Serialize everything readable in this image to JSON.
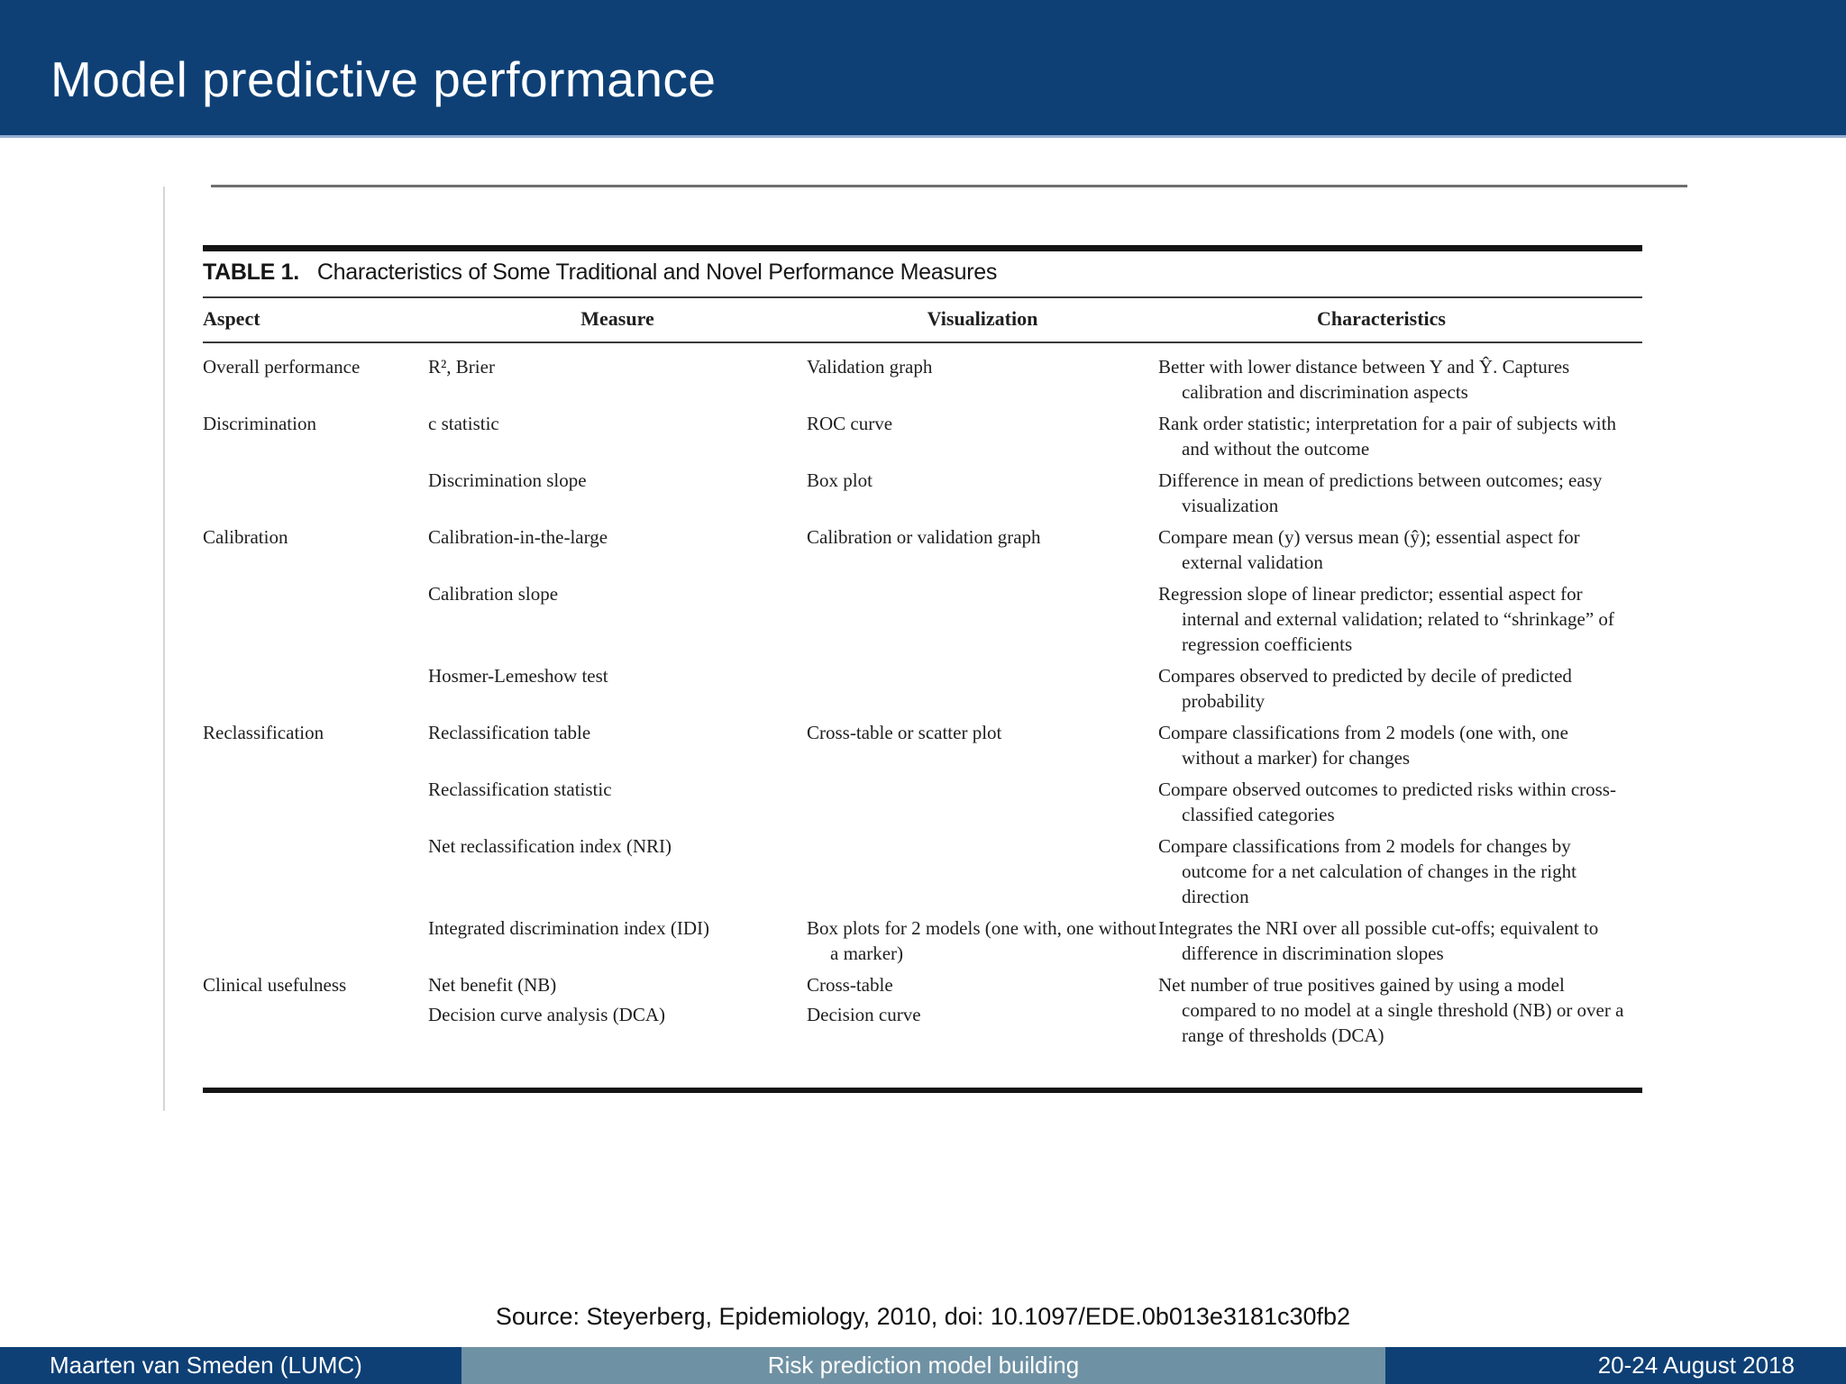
{
  "slide": {
    "title": "Model predictive performance",
    "source_line": "Source: Steyerberg, Epidemiology, 2010, doi: 10.1097/EDE.0b013e3181c30fb2",
    "footer": {
      "author": "Maarten van Smeden (LUMC)",
      "middle": "Risk prediction model building",
      "date": "20-24 August 2018"
    },
    "colors": {
      "header_blue": "#0e4076",
      "header_underline": "#97aed2",
      "footer_middle_steel": "#6f91a4",
      "table_text": "#1f1f1f"
    }
  },
  "table": {
    "caption_label": "TABLE 1.",
    "caption_text": "Characteristics of Some Traditional and Novel Performance Measures",
    "columns": [
      "Aspect",
      "Measure",
      "Visualization",
      "Characteristics"
    ],
    "rows": [
      {
        "aspect": "Overall performance",
        "measure": "R², Brier",
        "visualization": "Validation graph",
        "characteristics": "Better with lower distance between Y and Ŷ. Captures calibration and discrimination aspects"
      },
      {
        "aspect": "Discrimination",
        "measure": "c statistic",
        "visualization": "ROC curve",
        "characteristics": "Rank order statistic; interpretation for a pair of subjects with and without the outcome"
      },
      {
        "aspect": "",
        "measure": "Discrimination slope",
        "visualization": "Box plot",
        "characteristics": "Difference in mean of predictions between outcomes; easy visualization"
      },
      {
        "aspect": "Calibration",
        "measure": "Calibration-in-the-large",
        "visualization": "Calibration or validation graph",
        "characteristics": "Compare mean (y) versus mean (ŷ); essential aspect for external validation"
      },
      {
        "aspect": "",
        "measure": "Calibration slope",
        "visualization": "",
        "characteristics": "Regression slope of linear predictor; essential aspect for internal and external validation; related to “shrinkage” of regression coefficients"
      },
      {
        "aspect": "",
        "measure": "Hosmer-Lemeshow test",
        "visualization": "",
        "characteristics": "Compares observed to predicted by decile of predicted probability"
      },
      {
        "aspect": "Reclassification",
        "measure": "Reclassification table",
        "visualization": "Cross-table or scatter plot",
        "characteristics": "Compare classifications from 2 models (one with, one without a marker) for changes"
      },
      {
        "aspect": "",
        "measure": "Reclassification statistic",
        "visualization": "",
        "characteristics": "Compare observed outcomes to predicted risks within cross-classified categories"
      },
      {
        "aspect": "",
        "measure": "Net reclassification index (NRI)",
        "visualization": "",
        "characteristics": "Compare classifications from 2 models for changes by outcome for a net calculation of changes in the right direction"
      },
      {
        "aspect": "",
        "measure": "Integrated discrimination index (IDI)",
        "visualization": "Box plots for 2 models (one with, one without a marker)",
        "characteristics": "Integrates the NRI over all possible cut-offs; equivalent to difference in discrimination slopes"
      },
      {
        "aspect": "Clinical usefulness",
        "measure": "Net benefit (NB)",
        "measure2": "Decision curve analysis (DCA)",
        "visualization": "Cross-table",
        "visualization2": "Decision curve",
        "characteristics": "Net number of true positives gained by using a model compared to no model at a single threshold (NB) or over a range of thresholds (DCA)"
      }
    ]
  }
}
